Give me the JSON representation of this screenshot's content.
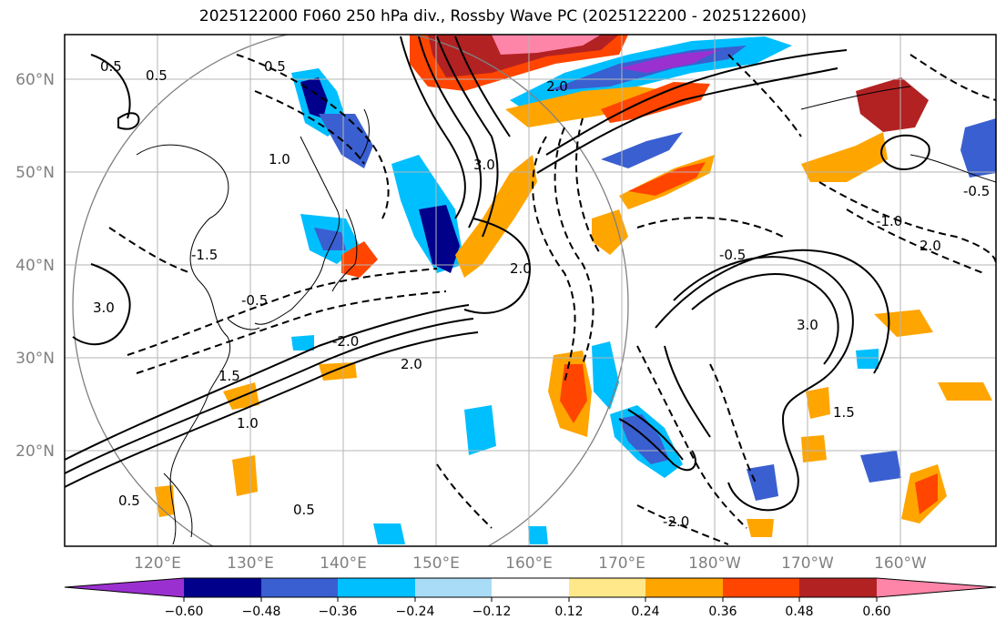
{
  "title": "2025122000 F060 250 hPa div., Rossby Wave PC (2025122200 - 2025122600)",
  "map": {
    "lat_labels": [
      "60°N",
      "50°N",
      "40°N",
      "30°N",
      "20°N"
    ],
    "lon_labels": [
      "120°E",
      "130°E",
      "140°E",
      "150°E",
      "160°E",
      "170°E",
      "180°W",
      "170°W",
      "160°W"
    ],
    "contour_labels": [
      "0.5",
      "0.5",
      "0.5",
      "1.0",
      "3.0",
      "2.0",
      "-1.5",
      "-2.0",
      "-0.5",
      "1.5",
      "2.0",
      "2.0",
      "1.0",
      "3.0",
      "-0.5",
      "0.5",
      "-2.0",
      "0.5",
      "-1.0",
      "2.0",
      "-0.5",
      "1.5",
      "3.0"
    ]
  },
  "colorbar": {
    "colors": [
      "#9b30d0",
      "#00008b",
      "#3a5fd0",
      "#00bfff",
      "#a8dcf7",
      "#ffffff",
      "#ffe88a",
      "#ffa500",
      "#ff4500",
      "#b22222",
      "#ff85a8"
    ],
    "tick_labels": [
      "−0.60",
      "−0.48",
      "−0.36",
      "−0.24",
      "−0.12",
      "0.12",
      "0.24",
      "0.36",
      "0.48",
      "0.60"
    ]
  }
}
